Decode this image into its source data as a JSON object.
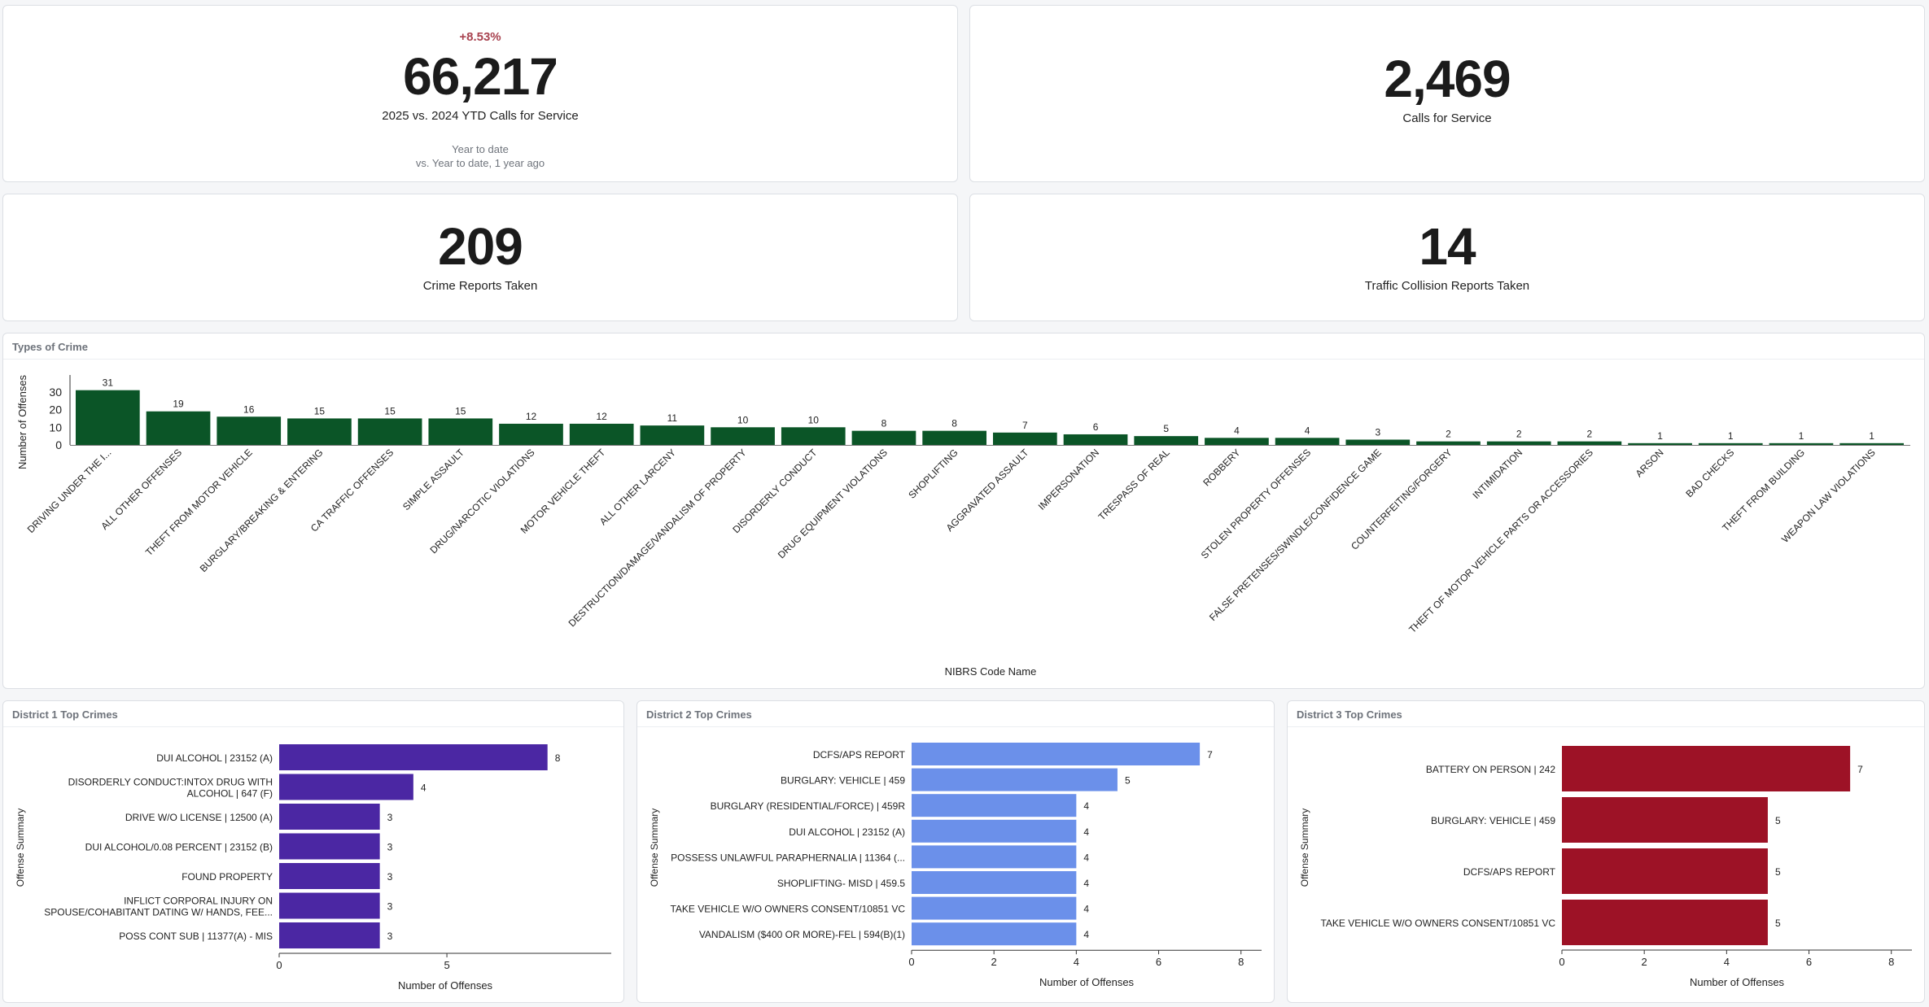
{
  "kpis": [
    {
      "change": "+8.53%",
      "value": "66,217",
      "label": "2025 vs. 2024 YTD Calls for Service",
      "sub1": "Year to date",
      "sub2": "vs. Year to date, 1 year ago"
    },
    {
      "value": "2,469",
      "label": "Calls for Service"
    },
    {
      "value": "209",
      "label": "Crime Reports Taken"
    },
    {
      "value": "14",
      "label": "Traffic Collision Reports Taken"
    }
  ],
  "colors": {
    "types": "#0b5527",
    "district1": "#4b27a3",
    "district2": "#6b90ea",
    "district3": "#9d1226"
  },
  "chart_data": [
    {
      "type": "bar",
      "title": "Types of Crime",
      "xlabel": "NIBRS Code Name",
      "ylabel": "Number of Offenses",
      "categories": [
        "DRIVING UNDER THE I...",
        "ALL OTHER OFFENSES",
        "THEFT FROM MOTOR VEHICLE",
        "BURGLARY/BREAKING & ENTERING",
        "CA TRAFFIC OFFENSES",
        "SIMPLE ASSAULT",
        "DRUG/NARCOTIC VIOLATIONS",
        "MOTOR VEHICLE THEFT",
        "ALL OTHER LARCENY",
        "DESTRUCTION/DAMAGE/VANDALISM OF PROPERTY",
        "DISORDERLY CONDUCT",
        "DRUG EQUIPMENT VIOLATIONS",
        "SHOPLIFTING",
        "AGGRAVATED ASSAULT",
        "IMPERSONATION",
        "TRESPASS OF REAL",
        "ROBBERY",
        "STOLEN PROPERTY OFFENSES",
        "FALSE PRETENSES/SWINDLE/CONFIDENCE GAME",
        "COUNTERFEITING/FORGERY",
        "INTIMIDATION",
        "THEFT OF MOTOR VEHICLE PARTS OR ACCESSORIES",
        "ARSON",
        "BAD CHECKS",
        "THEFT FROM BUILDING",
        "WEAPON LAW VIOLATIONS"
      ],
      "values": [
        31,
        19,
        16,
        15,
        15,
        15,
        12,
        12,
        11,
        10,
        10,
        8,
        8,
        7,
        6,
        5,
        4,
        4,
        3,
        2,
        2,
        2,
        1,
        1,
        1,
        1
      ],
      "yticks": [
        "0",
        "10",
        "20",
        "30"
      ],
      "ylim": [
        0,
        35
      ]
    },
    {
      "type": "bar",
      "orientation": "horizontal",
      "title": "District 1 Top Crimes",
      "xlabel": "Number of Offenses",
      "ylabel": "Offense Summary",
      "categories": [
        [
          "DUI ALCOHOL | 23152 (A)"
        ],
        [
          "DISORDERLY CONDUCT:INTOX DRUG WITH",
          "ALCOHOL | 647 (F)"
        ],
        [
          "DRIVE W/O LICENSE | 12500 (A)"
        ],
        [
          "DUI ALCOHOL/0.08 PERCENT | 23152 (B)"
        ],
        [
          "FOUND PROPERTY"
        ],
        [
          "INFLICT CORPORAL INJURY ON",
          "SPOUSE/COHABITANT DATING W/ HANDS, FEE..."
        ],
        [
          "POSS CONT SUB | 11377(A) - MIS"
        ]
      ],
      "values": [
        8,
        4,
        3,
        3,
        3,
        3,
        3
      ],
      "xticks": [
        "0",
        "5"
      ],
      "xlim": [
        0,
        9.9
      ]
    },
    {
      "type": "bar",
      "orientation": "horizontal",
      "title": "District 2 Top Crimes",
      "xlabel": "Number of Offenses",
      "ylabel": "Offense Summary",
      "categories": [
        [
          "DCFS/APS REPORT"
        ],
        [
          "BURGLARY: VEHICLE | 459"
        ],
        [
          "BURGLARY (RESIDENTIAL/FORCE) | 459R"
        ],
        [
          "DUI ALCOHOL | 23152 (A)"
        ],
        [
          "POSSESS UNLAWFUL PARAPHERNALIA | 11364 (..."
        ],
        [
          "SHOPLIFTING- MISD | 459.5"
        ],
        [
          "TAKE VEHICLE W/O OWNERS CONSENT/10851 VC"
        ],
        [
          "VANDALISM ($400 OR MORE)-FEL | 594(B)(1)"
        ]
      ],
      "values": [
        7,
        5,
        4,
        4,
        4,
        4,
        4,
        4
      ],
      "xticks": [
        "0",
        "2",
        "4",
        "6",
        "8"
      ],
      "xlim": [
        0,
        8.5
      ]
    },
    {
      "type": "bar",
      "orientation": "horizontal",
      "title": "District 3 Top Crimes",
      "xlabel": "Number of Offenses",
      "ylabel": "Offense Summary",
      "categories": [
        [
          "BATTERY ON PERSON | 242"
        ],
        [
          "BURGLARY: VEHICLE | 459"
        ],
        [
          "DCFS/APS REPORT"
        ],
        [
          "TAKE VEHICLE W/O OWNERS CONSENT/10851 VC"
        ]
      ],
      "values": [
        7,
        5,
        5,
        5
      ],
      "xticks": [
        "0",
        "2",
        "4",
        "6",
        "8"
      ],
      "xlim": [
        0,
        8.5
      ]
    }
  ]
}
